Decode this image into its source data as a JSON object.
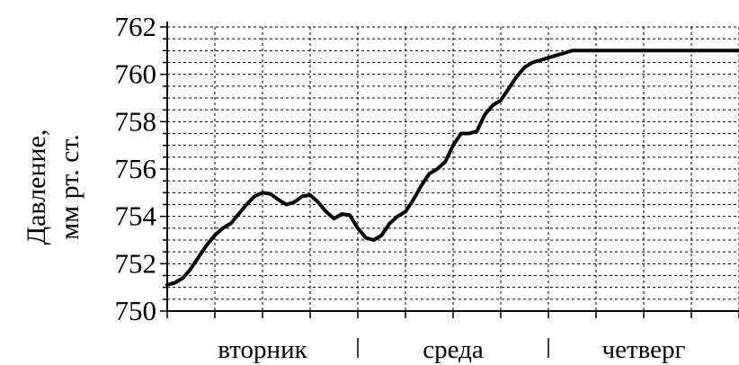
{
  "chart_data": {
    "type": "line",
    "ylabel_line1": "Давление,",
    "ylabel_line2": "мм рт. ст.",
    "ylim": [
      750,
      762
    ],
    "yticks": [
      "762",
      "760",
      "758",
      "756",
      "754",
      "752",
      "750"
    ],
    "xlabels": [
      "вторник",
      "среда",
      "четверг"
    ],
    "grid": true,
    "series": [
      {
        "x": [
          0,
          0.5,
          1,
          1.5,
          2,
          2.5,
          3,
          3.5,
          4,
          4.5,
          5,
          5.5,
          6,
          6.5,
          7,
          7.5,
          8,
          8.5,
          9,
          9.5,
          10,
          10.5,
          11,
          11.5,
          12,
          12.5,
          13,
          13.5,
          14,
          14.5,
          15,
          15.5,
          16,
          16.5,
          17,
          17.5,
          18,
          18.5,
          19,
          19.5,
          20,
          20.5,
          21,
          21.5,
          22,
          22.5,
          23,
          23.5,
          24,
          24.5,
          25,
          25.5,
          26,
          26.5,
          27,
          27.5,
          28,
          28.5,
          29,
          29.5,
          30,
          30.5,
          31,
          31.5,
          32,
          32.5,
          33,
          33.5,
          34,
          34.5,
          35,
          35.5,
          36
        ],
        "values": [
          751.1,
          751.2,
          751.4,
          751.8,
          752.3,
          752.8,
          753.2,
          753.5,
          753.7,
          754.1,
          754.5,
          754.85,
          755.0,
          754.95,
          754.7,
          754.5,
          754.6,
          754.85,
          754.9,
          754.6,
          754.2,
          753.9,
          754.1,
          754.05,
          753.5,
          753.1,
          753.0,
          753.2,
          753.7,
          754.0,
          754.2,
          754.7,
          755.3,
          755.8,
          756.0,
          756.3,
          757.0,
          757.5,
          757.5,
          757.6,
          758.3,
          758.7,
          758.9,
          759.4,
          759.9,
          760.3,
          760.5,
          760.6,
          760.7,
          760.8,
          760.9,
          761.0,
          761.0,
          761.0,
          761.0,
          761.0,
          761.0,
          761.0,
          761.0,
          761.0,
          761.0,
          761.0,
          761.0,
          761.0,
          761.0,
          761.0,
          761.0,
          761.0,
          761.0,
          761.0,
          761.0,
          761.0,
          761.0
        ]
      }
    ]
  }
}
